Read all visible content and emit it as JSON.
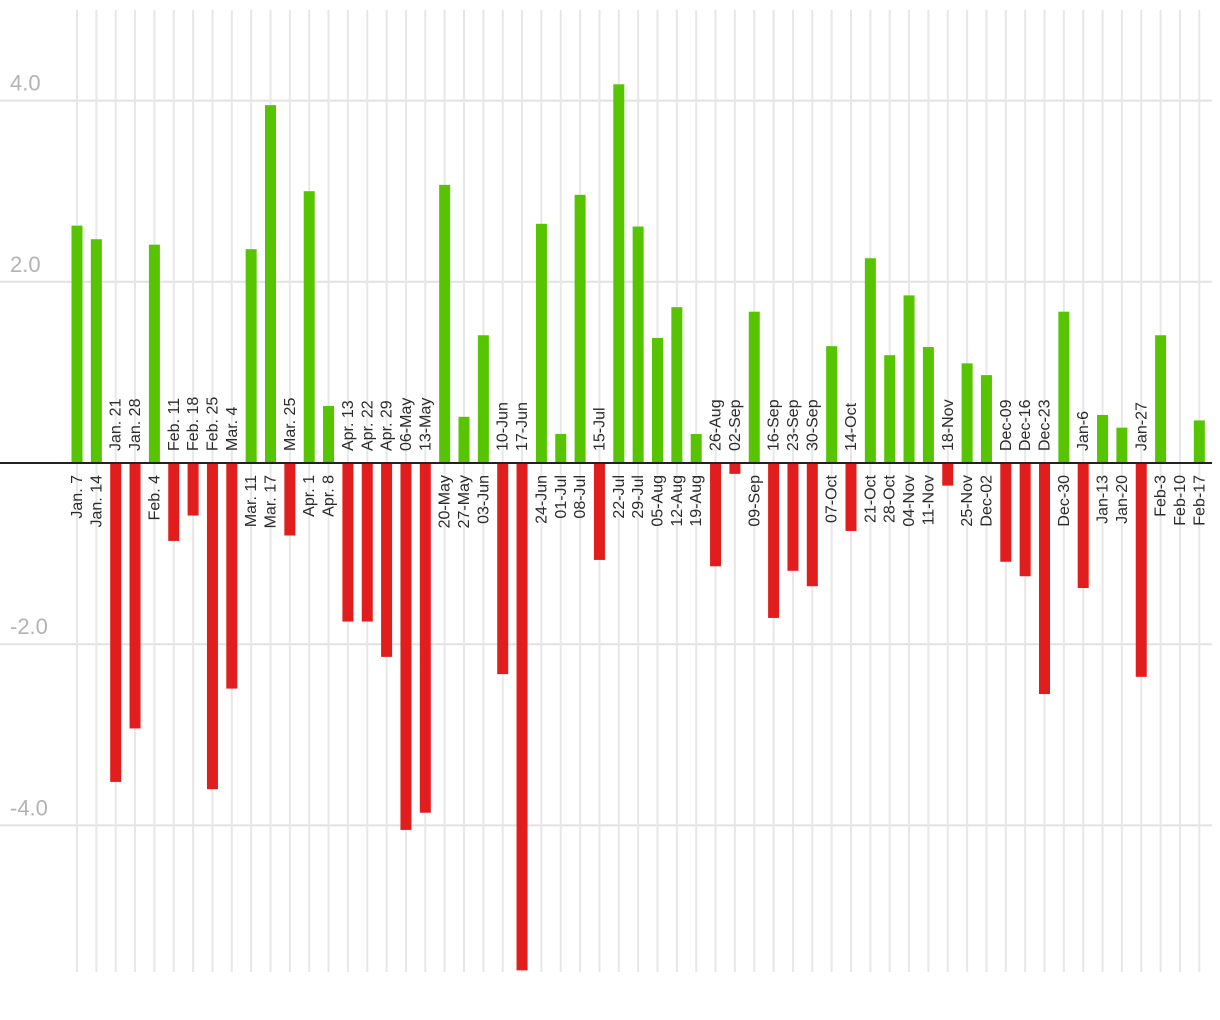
{
  "chart_data": {
    "type": "bar",
    "title": "",
    "xlabel": "",
    "ylabel": "",
    "ylim": [
      -5.6,
      5.0
    ],
    "yticks": [
      4.0,
      2.0,
      -2.0,
      -4.0
    ],
    "ytick_labels": [
      "4.0",
      "2.0",
      "-2.0",
      "-4.0"
    ],
    "grid": true,
    "colors": {
      "positive": "#57c400",
      "negative": "#e21d1d",
      "zero_line": "#222222",
      "grid": "#e4e4e4",
      "ytick": "#b3b3b3",
      "xtick": "#2b2b2b"
    },
    "categories": [
      "Jan. 7",
      "Jan. 14",
      "Jan. 21",
      "Jan. 28",
      "Feb. 4",
      "Feb. 11",
      "Feb. 18",
      "Feb. 25",
      "Mar. 4",
      "Mar. 11",
      "Mar. 17",
      "Mar. 25",
      "Apr. 1",
      "Apr. 8",
      "Apr. 13",
      "Apr. 22",
      "Apr. 29",
      "06-May",
      "13-May",
      "20-May",
      "27-May",
      "03-Jun",
      "10-Jun",
      "17-Jun",
      "24-Jun",
      "01-Jul",
      "08-Jul",
      "15-Jul",
      "22-Jul",
      "29-Jul",
      "05-Aug",
      "12-Aug",
      "19-Aug",
      "26-Aug",
      "02-Sep",
      "09-Sep",
      "16-Sep",
      "23-Sep",
      "30-Sep",
      "07-Oct",
      "14-Oct",
      "21-Oct",
      "28-Oct",
      "04-Nov",
      "11-Nov",
      "18-Nov",
      "25-Nov",
      "Dec-02",
      "Dec-09",
      "Dec-16",
      "Dec-23",
      "Dec-30",
      "Jan-6",
      "Jan-13",
      "Jan-20",
      "Jan-27",
      "Feb-3",
      "Feb-10",
      "Feb-17"
    ],
    "values": [
      2.62,
      2.47,
      -3.52,
      -2.93,
      2.41,
      -0.86,
      -0.58,
      -3.6,
      -2.49,
      2.36,
      3.95,
      -0.8,
      3.0,
      0.63,
      -1.75,
      -1.75,
      -2.14,
      -4.05,
      -3.86,
      3.07,
      0.51,
      1.41,
      -2.33,
      -5.6,
      2.64,
      0.32,
      2.96,
      -1.07,
      4.18,
      2.61,
      1.38,
      1.72,
      0.32,
      -1.14,
      -0.12,
      1.67,
      -1.71,
      -1.19,
      -1.36,
      1.29,
      -0.75,
      2.26,
      1.19,
      1.85,
      1.28,
      -0.25,
      1.1,
      0.97,
      -1.09,
      -1.25,
      -2.55,
      1.67,
      -1.38,
      0.53,
      0.39,
      -2.36,
      1.41,
      0.0,
      0.47
    ]
  }
}
